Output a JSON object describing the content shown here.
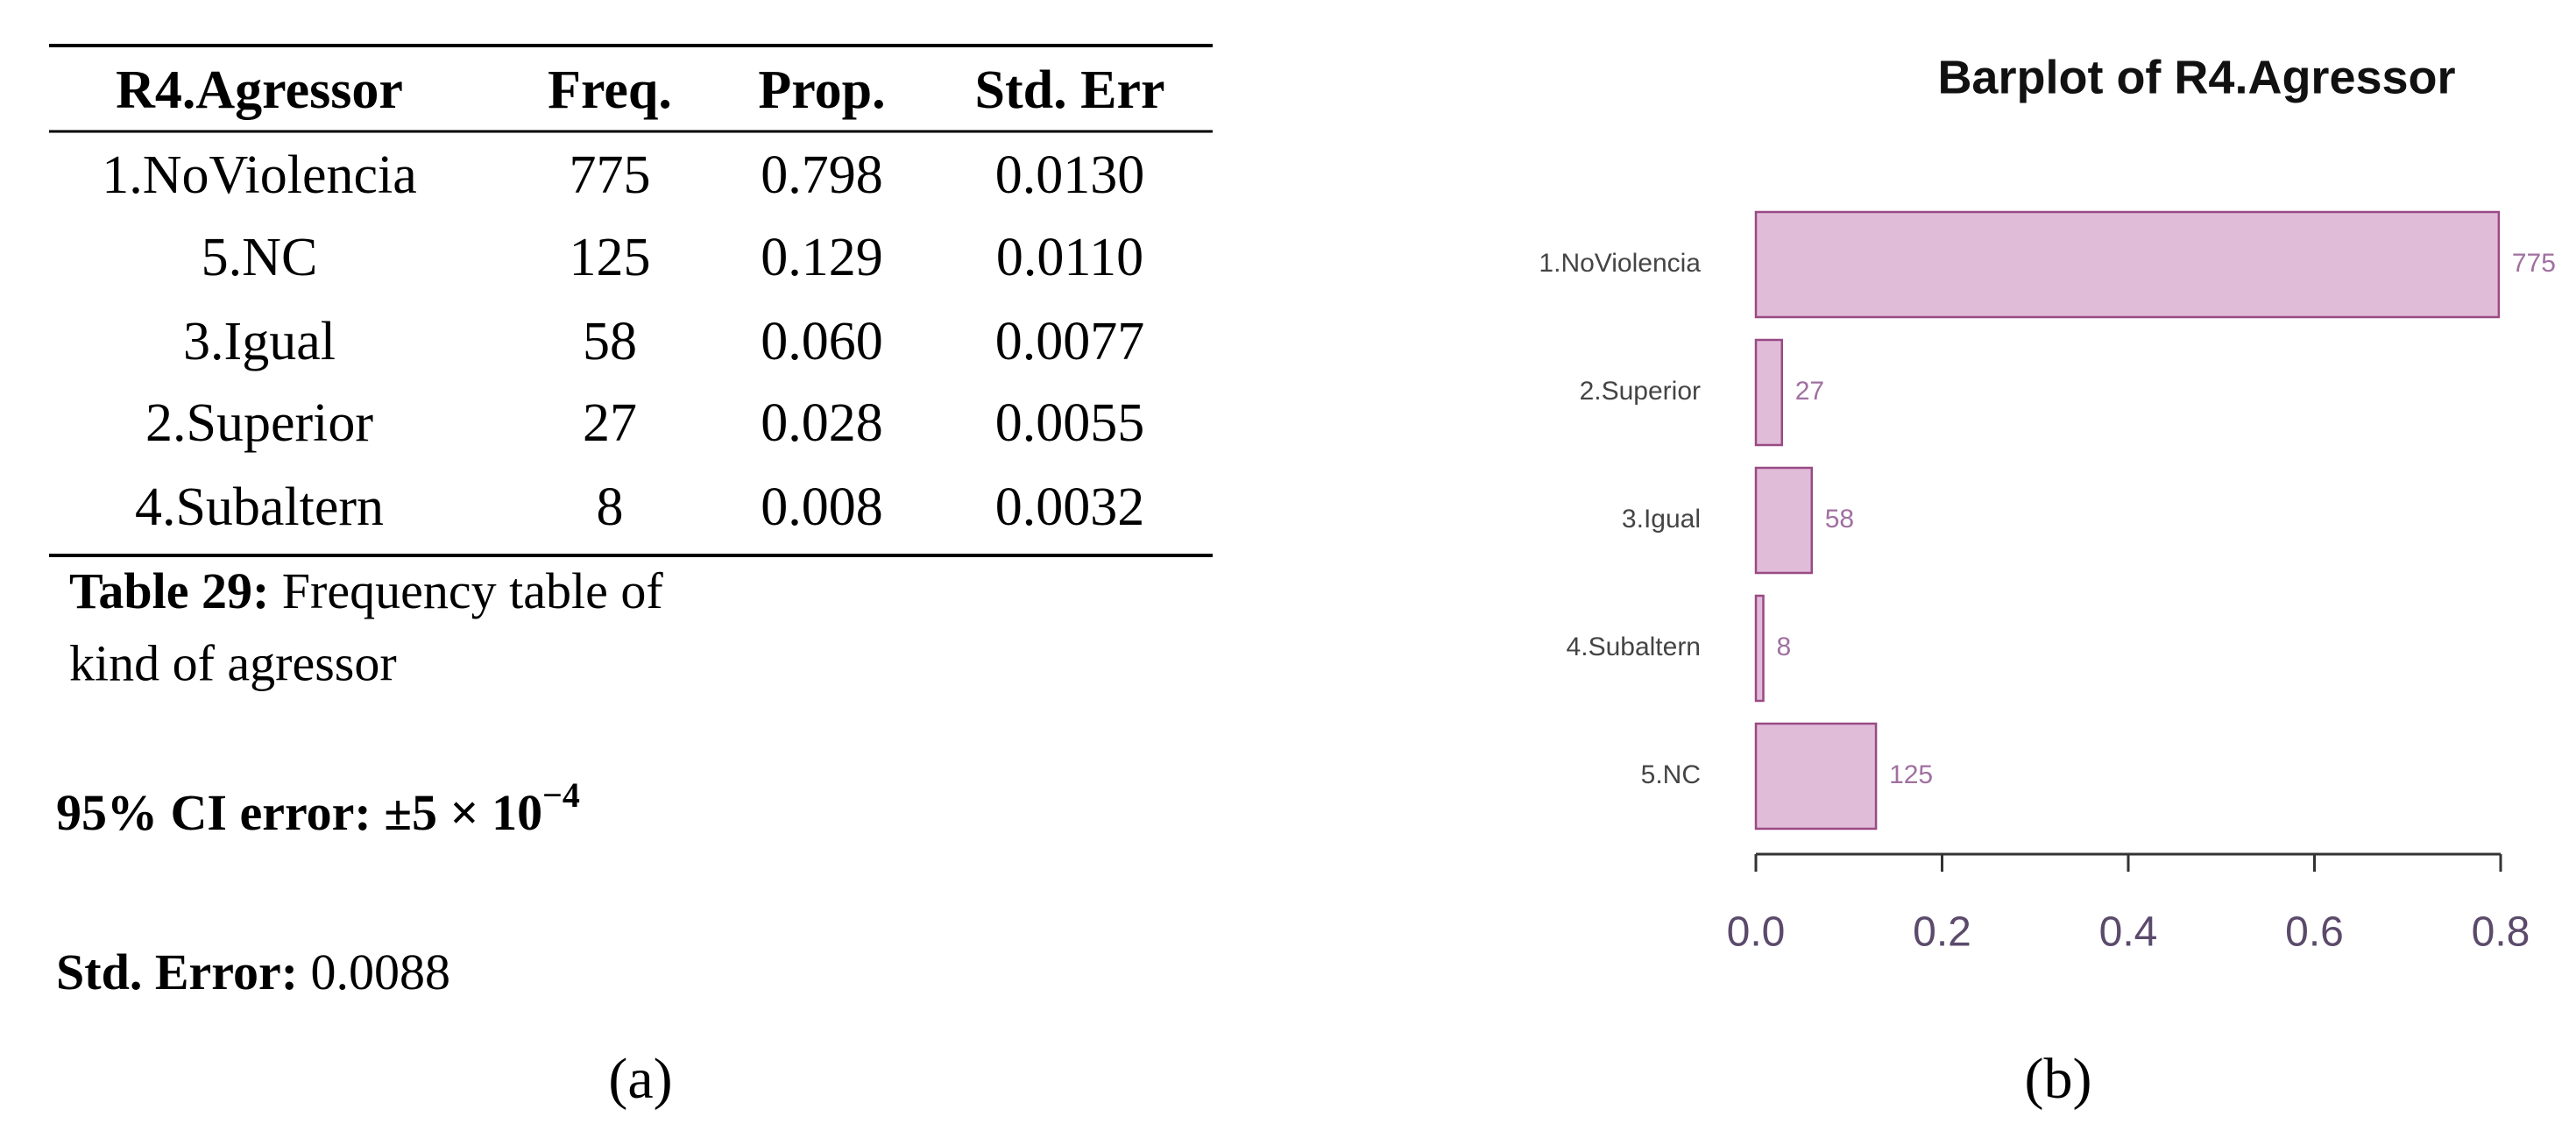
{
  "table": {
    "header": [
      "R4.Agressor",
      "Freq.",
      "Prop.",
      "Std. Err"
    ],
    "rows": [
      [
        "1.NoViolencia",
        "775",
        "0.798",
        "0.0130"
      ],
      [
        "5.NC",
        "125",
        "0.129",
        "0.0110"
      ],
      [
        "3.Igual",
        "58",
        "0.060",
        "0.0077"
      ],
      [
        "2.Superior",
        "27",
        "0.028",
        "0.0055"
      ],
      [
        "4.Subaltern",
        "8",
        "0.008",
        "0.0032"
      ]
    ],
    "caption_label": "Table 29:",
    "caption_lines": [
      "Frequency table of",
      "kind of agressor"
    ]
  },
  "notes": {
    "ci_label": "95% CI error:",
    "ci_value": "±5 × 10",
    "ci_exponent": "−4",
    "se_label": "Std. Error:",
    "se_value": "0.0088"
  },
  "panel_labels": [
    "(a)",
    "(b)"
  ],
  "chart_data": {
    "type": "bar",
    "orientation": "horizontal",
    "title": "Barplot of R4.Agressor",
    "categories": [
      "1.NoViolencia",
      "2.Superior",
      "3.Igual",
      "4.Subaltern",
      "5.NC"
    ],
    "values": [
      0.798,
      0.028,
      0.06,
      0.008,
      0.129
    ],
    "counts": [
      775,
      27,
      58,
      8,
      125
    ],
    "color": "#e0bcd8",
    "edge_color": "#9a4a85",
    "xlim": [
      0,
      0.8
    ],
    "xticks": [
      {
        "value": 0,
        "label": "0.0"
      },
      0.2,
      0.4,
      0.6,
      0.8
    ]
  }
}
